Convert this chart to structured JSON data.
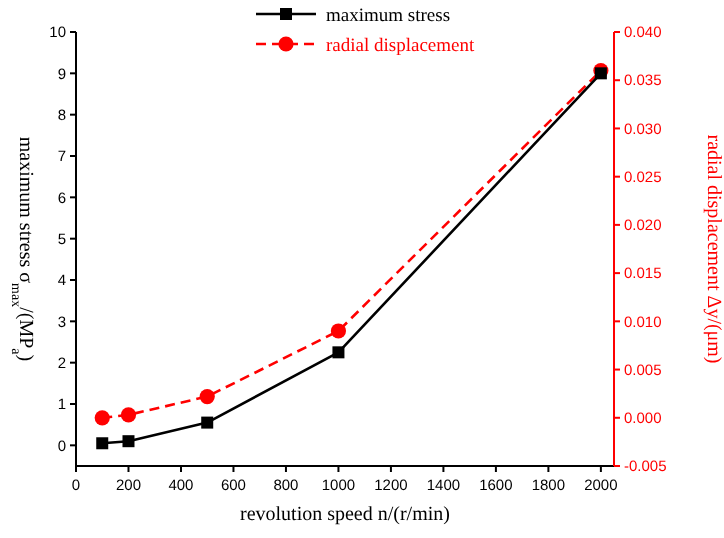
{
  "chart_data": {
    "type": "line",
    "xlabel": "revolution speed  n/(r/min)",
    "ylabel": "maximum stress  σ$_{max}$/(MP$_{a}$)",
    "y2label": "radial displacement  Δy/(μm)",
    "x": [
      100,
      200,
      500,
      1000,
      2000
    ],
    "series": [
      {
        "name": "maximum stress",
        "color": "#000000",
        "values": [
          0.05,
          0.1,
          0.55,
          2.25,
          9.0
        ],
        "marker": "square",
        "line_style": "solid"
      },
      {
        "name": "radial displacement",
        "color": "#ff0000",
        "values": [
          0.0,
          0.0003,
          0.0022,
          0.009,
          0.036
        ],
        "marker": "circle",
        "line_style": "dashed",
        "axis": "y2"
      }
    ],
    "xlim": [
      0,
      2050
    ],
    "xticks": [
      0,
      200,
      400,
      600,
      800,
      1000,
      1200,
      1400,
      1600,
      1800,
      2000
    ],
    "ylim": [
      -0.5,
      10
    ],
    "yticks": [
      0,
      1,
      2,
      3,
      4,
      5,
      6,
      7,
      8,
      9,
      10
    ],
    "y2lim": [
      -0.005,
      0.04
    ],
    "y2ticks": [
      {
        "value": -0.005,
        "label": "-0.005"
      },
      {
        "value": 0,
        "label": "0.000"
      },
      {
        "value": 0.005,
        "label": "0.005"
      },
      {
        "value": 0.01,
        "label": "0.010"
      },
      {
        "value": 0.015,
        "label": "0.015"
      },
      {
        "value": 0.02,
        "label": "0.020"
      },
      {
        "value": 0.025,
        "label": "0.025"
      },
      {
        "value": 0.03,
        "label": "0.030"
      },
      {
        "value": 0.035,
        "label": "0.035"
      },
      {
        "value": 0.04,
        "label": "0.040"
      }
    ],
    "legend": "top",
    "grid": false
  }
}
